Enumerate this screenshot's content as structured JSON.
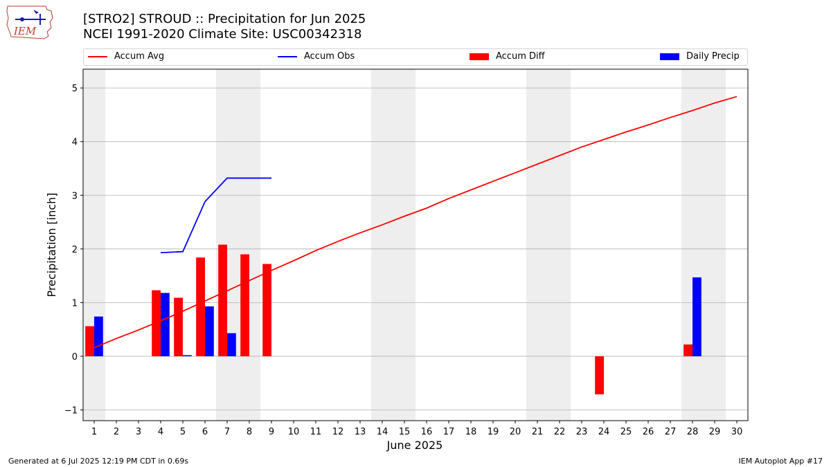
{
  "header": {
    "title_line1": "[STRO2] STROUD :: Precipitation for Jun 2025",
    "title_line2": "NCEI 1991-2020 Climate Site: USC00342318",
    "logo_text": "IEM"
  },
  "legend": {
    "items": [
      {
        "label": "Accum Avg",
        "kind": "line",
        "color": "#ff0000"
      },
      {
        "label": "Accum Obs",
        "kind": "line",
        "color": "#0000ff"
      },
      {
        "label": "Accum Diff",
        "kind": "box",
        "color": "#ff0000"
      },
      {
        "label": "Daily Precip",
        "kind": "box",
        "color": "#0000ff"
      }
    ]
  },
  "footer": {
    "generated": "Generated at 6 Jul 2025 12:19 PM CDT in 0.69s",
    "app": "IEM Autoplot App #17"
  },
  "chart_data": {
    "type": "bar",
    "title": "[STRO2] STROUD :: Precipitation for Jun 2025",
    "subtitle": "NCEI 1991-2020 Climate Site: USC00342318",
    "xlabel": "June 2025",
    "ylabel": "Precipitation [inch]",
    "xlim": [
      0.5,
      30.5
    ],
    "ylim": [
      -1.2,
      5.35
    ],
    "yticks": [
      -1,
      0,
      1,
      2,
      3,
      4,
      5
    ],
    "grid": "horizontal",
    "legend_position": "top",
    "weekend_shading": [
      [
        0.5,
        1.5
      ],
      [
        6.5,
        8.5
      ],
      [
        13.5,
        15.5
      ],
      [
        20.5,
        22.5
      ],
      [
        27.5,
        29.5
      ]
    ],
    "x": [
      1,
      2,
      3,
      4,
      5,
      6,
      7,
      8,
      9,
      10,
      11,
      12,
      13,
      14,
      15,
      16,
      17,
      18,
      19,
      20,
      21,
      22,
      23,
      24,
      25,
      26,
      27,
      28,
      29,
      30
    ],
    "series": [
      {
        "name": "Accum Avg",
        "kind": "line",
        "color": "#ff0000",
        "values": [
          0.16,
          0.33,
          0.49,
          0.66,
          0.84,
          1.03,
          1.22,
          1.41,
          1.6,
          1.78,
          1.97,
          2.14,
          2.3,
          2.45,
          2.61,
          2.76,
          2.94,
          3.1,
          3.26,
          3.42,
          3.58,
          3.74,
          3.9,
          4.04,
          4.18,
          4.31,
          4.45,
          4.58,
          4.72,
          4.84
        ]
      },
      {
        "name": "Accum Obs",
        "kind": "line",
        "color": "#0000ff",
        "values": [
          null,
          null,
          null,
          1.93,
          1.95,
          2.88,
          3.32,
          3.32,
          3.32,
          null,
          null,
          null,
          null,
          null,
          null,
          null,
          null,
          null,
          null,
          null,
          null,
          null,
          null,
          null,
          null,
          null,
          null,
          null,
          null,
          null
        ]
      },
      {
        "name": "Accum Diff",
        "kind": "bar",
        "color": "#ff0000",
        "values": [
          0.56,
          null,
          null,
          1.23,
          1.09,
          1.84,
          2.08,
          1.9,
          1.72,
          null,
          null,
          null,
          null,
          null,
          null,
          null,
          null,
          null,
          null,
          null,
          null,
          null,
          null,
          -0.71,
          null,
          null,
          null,
          0.22,
          null,
          null
        ]
      },
      {
        "name": "Daily Precip",
        "kind": "bar",
        "color": "#0000ff",
        "values": [
          0.74,
          null,
          null,
          1.18,
          0.02,
          0.93,
          0.43,
          null,
          null,
          null,
          null,
          null,
          null,
          null,
          null,
          null,
          null,
          null,
          null,
          null,
          null,
          null,
          null,
          null,
          null,
          null,
          null,
          1.47,
          null,
          null
        ]
      }
    ]
  }
}
